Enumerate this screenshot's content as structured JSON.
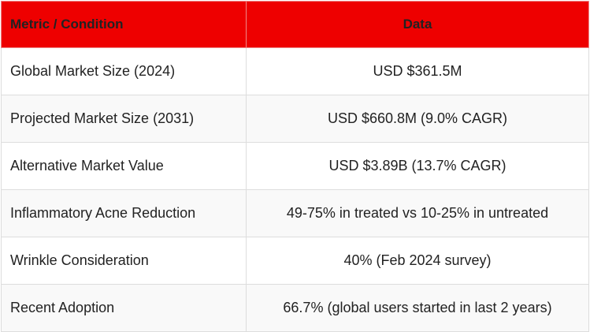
{
  "table": {
    "header": [
      "Metric / Condition",
      "Data"
    ],
    "rows": [
      [
        "Global Market Size (2024)",
        "USD $361.5M"
      ],
      [
        "Projected Market Size (2031)",
        "USD $660.8M (9.0% CAGR)"
      ],
      [
        "Alternative Market Value",
        "USD $3.89B (13.7% CAGR)"
      ],
      [
        "Inflammatory Acne Reduction",
        "49-75% in treated vs 10-25% in untreated"
      ],
      [
        "Wrinkle Consideration",
        "40% (Feb 2024 survey)"
      ],
      [
        "Recent Adoption",
        "66.7% (global users started in last 2 years)"
      ]
    ]
  }
}
